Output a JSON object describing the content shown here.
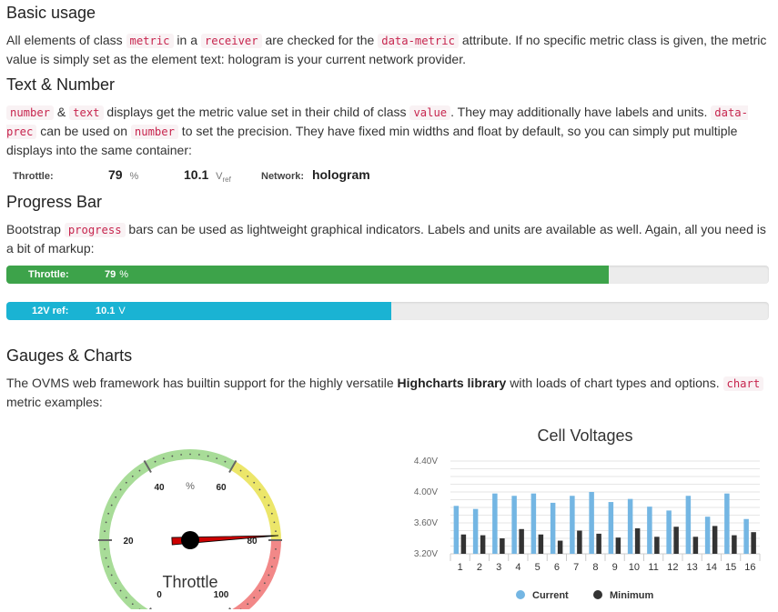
{
  "sections": {
    "basic": {
      "title": "Basic usage",
      "p1": "All elements of class ",
      "c1": "metric",
      "p2": " in a ",
      "c2": "receiver",
      "p3": " are checked for the ",
      "c3": "data-metric",
      "p4": " attribute. If no specific metric class is given, the metric value is simply set as the element text: hologram is your current network provider."
    },
    "text_number": {
      "title": "Text & Number",
      "c1": "number",
      "p1": " & ",
      "c2": "text",
      "p2": " displays get the metric value set in their child of class ",
      "c3": "value",
      "p3": ". They may additionally have labels and units. ",
      "c4": "data-prec",
      "p4": " can be used on ",
      "c5": "number",
      "p5": " to set the precision. They have fixed min widths and float by default, so you can simply put multiple displays into the same container:"
    },
    "progress": {
      "title": "Progress Bar",
      "p1": "Bootstrap ",
      "c1": "progress",
      "p2": " bars can be used as lightweight graphical indicators. Labels and units are available as well. Again, all you need is a bit of markup:"
    },
    "gauges": {
      "title": "Gauges & Charts",
      "p1": "The OVMS web framework has builtin support for the highly versatile ",
      "bold": "Highcharts library",
      "p2": " with loads of chart types and options. ",
      "c1": "chart",
      "p3": " metric examples:"
    }
  },
  "metrics": {
    "throttle": {
      "label": "Throttle:",
      "value": "79",
      "unit": "%"
    },
    "ref": {
      "value": "10.1",
      "unit_main": "V",
      "unit_sub": "ref"
    },
    "network": {
      "label": "Network:",
      "value": "hologram"
    }
  },
  "progress_bars": [
    {
      "label": "Throttle:",
      "value": "79",
      "unit": "%",
      "fraction": 0.79,
      "color": "#3da34a"
    },
    {
      "label": "12V ref:",
      "value": "10.1",
      "unit": "V",
      "fraction": 0.505,
      "color": "#1ab3d3"
    }
  ],
  "gauge": {
    "title": "Throttle",
    "unit": "%",
    "min": 0,
    "max": 100,
    "value": 79,
    "tick_labels": [
      "0",
      "20",
      "40",
      "60",
      "80",
      "100"
    ],
    "bands": [
      {
        "from": 0,
        "to": 60,
        "color": "#a8dc98"
      },
      {
        "from": 60,
        "to": 80,
        "color": "#ece66a"
      },
      {
        "from": 80,
        "to": 100,
        "color": "#f28888"
      }
    ],
    "needle_color": "#cc0000"
  },
  "chart_data": {
    "type": "bar",
    "title": "Cell Voltages",
    "categories": [
      "1",
      "2",
      "3",
      "4",
      "5",
      "6",
      "7",
      "8",
      "9",
      "10",
      "11",
      "12",
      "13",
      "14",
      "15",
      "16"
    ],
    "series": [
      {
        "name": "Current",
        "color": "#74b6e3",
        "values": [
          3.82,
          3.78,
          3.98,
          3.95,
          3.98,
          3.86,
          3.95,
          4.0,
          3.87,
          3.91,
          3.81,
          3.76,
          3.95,
          3.68,
          3.98,
          3.65
        ]
      },
      {
        "name": "Minimum",
        "color": "#333333",
        "values": [
          3.45,
          3.44,
          3.4,
          3.52,
          3.45,
          3.37,
          3.5,
          3.46,
          3.41,
          3.53,
          3.42,
          3.55,
          3.42,
          3.56,
          3.44,
          3.48
        ]
      }
    ],
    "y_ticks": [
      "4.40V",
      "4.00V",
      "3.60V",
      "3.20V"
    ],
    "ylim": [
      3.2,
      4.4
    ],
    "legend_position": "bottom"
  }
}
